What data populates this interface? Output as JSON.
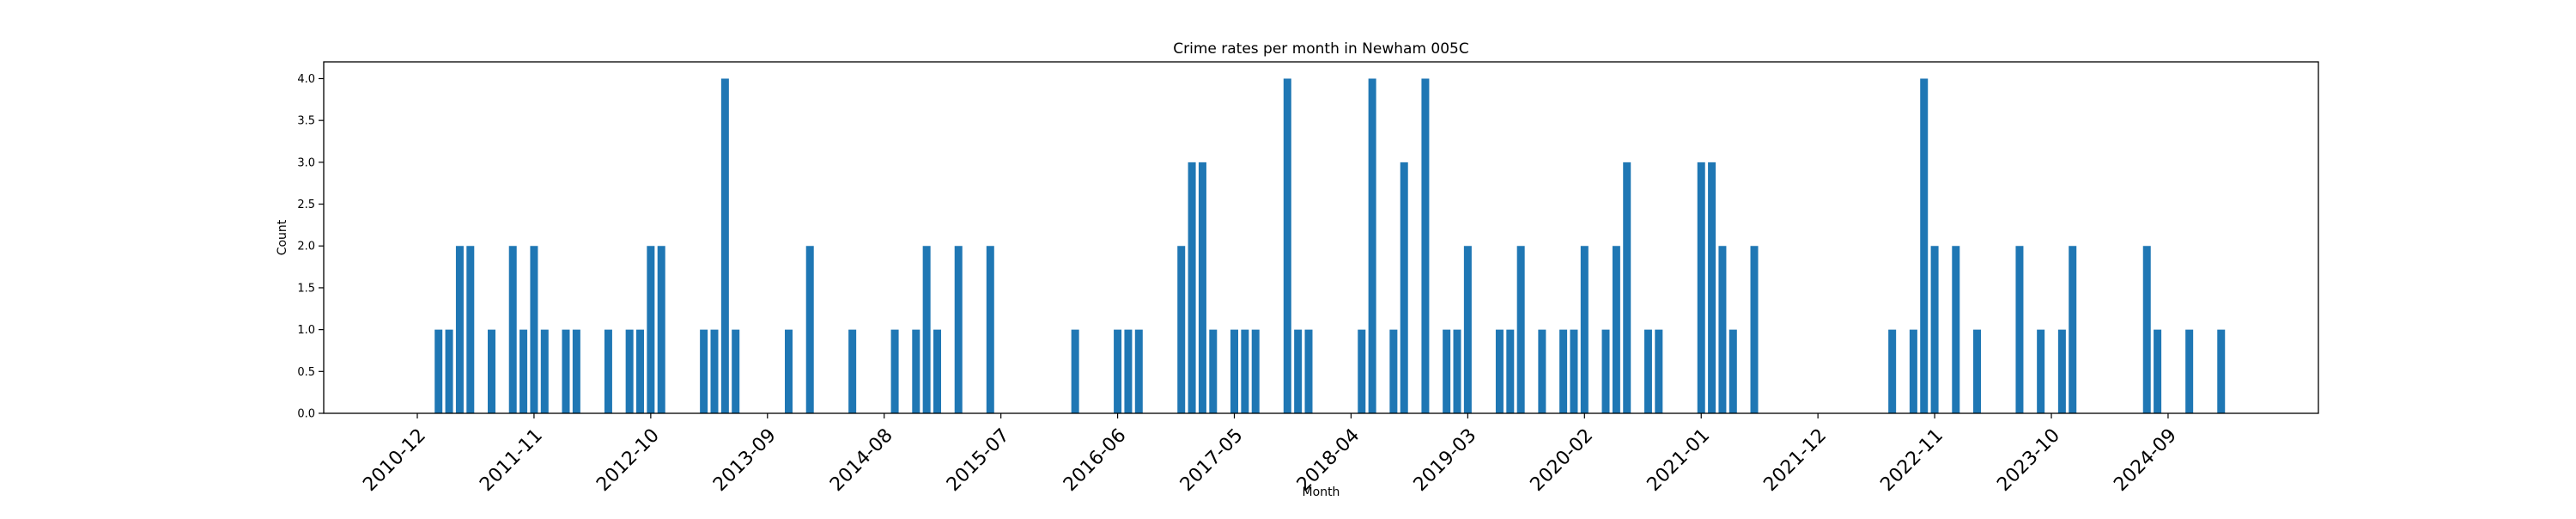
{
  "chart_data": {
    "type": "bar",
    "title": "Crime rates per month in Newham 005C",
    "xlabel": "Month",
    "ylabel": "Count",
    "ylim": [
      0,
      4.2
    ],
    "yticks": [
      "0.0",
      "0.5",
      "1.0",
      "1.5",
      "2.0",
      "2.5",
      "3.0",
      "3.5",
      "4.0"
    ],
    "xtick_labels": [
      "2010-12",
      "2011-11",
      "2012-10",
      "2013-09",
      "2014-08",
      "2015-07",
      "2016-06",
      "2017-05",
      "2018-04",
      "2019-03",
      "2020-02",
      "2021-01",
      "2021-12",
      "2022-11",
      "2023-10",
      "2024-09"
    ],
    "grid": false,
    "legend": "none",
    "bar_color": "#1f77b4",
    "points": [
      {
        "x": "2011-02",
        "y": 1
      },
      {
        "x": "2011-03",
        "y": 1
      },
      {
        "x": "2011-04",
        "y": 2
      },
      {
        "x": "2011-05",
        "y": 2
      },
      {
        "x": "2011-07",
        "y": 1
      },
      {
        "x": "2011-09",
        "y": 2
      },
      {
        "x": "2011-10",
        "y": 1
      },
      {
        "x": "2011-11",
        "y": 2
      },
      {
        "x": "2011-12",
        "y": 1
      },
      {
        "x": "2012-02",
        "y": 1
      },
      {
        "x": "2012-03",
        "y": 1
      },
      {
        "x": "2012-06",
        "y": 1
      },
      {
        "x": "2012-08",
        "y": 1
      },
      {
        "x": "2012-09",
        "y": 1
      },
      {
        "x": "2012-10",
        "y": 2
      },
      {
        "x": "2012-11",
        "y": 2
      },
      {
        "x": "2013-03",
        "y": 1
      },
      {
        "x": "2013-04",
        "y": 1
      },
      {
        "x": "2013-05",
        "y": 4
      },
      {
        "x": "2013-06",
        "y": 1
      },
      {
        "x": "2013-11",
        "y": 1
      },
      {
        "x": "2014-01",
        "y": 2
      },
      {
        "x": "2014-05",
        "y": 1
      },
      {
        "x": "2014-09",
        "y": 1
      },
      {
        "x": "2014-11",
        "y": 1
      },
      {
        "x": "2014-12",
        "y": 2
      },
      {
        "x": "2015-01",
        "y": 1
      },
      {
        "x": "2015-03",
        "y": 2
      },
      {
        "x": "2015-06",
        "y": 2
      },
      {
        "x": "2016-02",
        "y": 1
      },
      {
        "x": "2016-06",
        "y": 1
      },
      {
        "x": "2016-07",
        "y": 1
      },
      {
        "x": "2016-08",
        "y": 1
      },
      {
        "x": "2016-12",
        "y": 2
      },
      {
        "x": "2017-01",
        "y": 3
      },
      {
        "x": "2017-02",
        "y": 3
      },
      {
        "x": "2017-03",
        "y": 1
      },
      {
        "x": "2017-05",
        "y": 1
      },
      {
        "x": "2017-06",
        "y": 1
      },
      {
        "x": "2017-07",
        "y": 1
      },
      {
        "x": "2017-10",
        "y": 4
      },
      {
        "x": "2017-11",
        "y": 1
      },
      {
        "x": "2017-12",
        "y": 1
      },
      {
        "x": "2018-05",
        "y": 1
      },
      {
        "x": "2018-06",
        "y": 4
      },
      {
        "x": "2018-08",
        "y": 1
      },
      {
        "x": "2018-09",
        "y": 3
      },
      {
        "x": "2018-11",
        "y": 4
      },
      {
        "x": "2019-01",
        "y": 1
      },
      {
        "x": "2019-02",
        "y": 1
      },
      {
        "x": "2019-03",
        "y": 2
      },
      {
        "x": "2019-06",
        "y": 1
      },
      {
        "x": "2019-07",
        "y": 1
      },
      {
        "x": "2019-08",
        "y": 2
      },
      {
        "x": "2019-10",
        "y": 1
      },
      {
        "x": "2019-12",
        "y": 1
      },
      {
        "x": "2020-01",
        "y": 1
      },
      {
        "x": "2020-02",
        "y": 2
      },
      {
        "x": "2020-04",
        "y": 1
      },
      {
        "x": "2020-05",
        "y": 2
      },
      {
        "x": "2020-06",
        "y": 3
      },
      {
        "x": "2020-08",
        "y": 1
      },
      {
        "x": "2020-09",
        "y": 1
      },
      {
        "x": "2021-01",
        "y": 3
      },
      {
        "x": "2021-02",
        "y": 3
      },
      {
        "x": "2021-03",
        "y": 2
      },
      {
        "x": "2021-04",
        "y": 1
      },
      {
        "x": "2021-06",
        "y": 2
      },
      {
        "x": "2022-07",
        "y": 1
      },
      {
        "x": "2022-09",
        "y": 1
      },
      {
        "x": "2022-10",
        "y": 4
      },
      {
        "x": "2022-11",
        "y": 2
      },
      {
        "x": "2023-01",
        "y": 2
      },
      {
        "x": "2023-03",
        "y": 1
      },
      {
        "x": "2023-07",
        "y": 2
      },
      {
        "x": "2023-09",
        "y": 1
      },
      {
        "x": "2023-11",
        "y": 1
      },
      {
        "x": "2023-12",
        "y": 2
      },
      {
        "x": "2024-07",
        "y": 2
      },
      {
        "x": "2024-08",
        "y": 1
      },
      {
        "x": "2024-11",
        "y": 1
      },
      {
        "x": "2025-02",
        "y": 1
      }
    ]
  }
}
